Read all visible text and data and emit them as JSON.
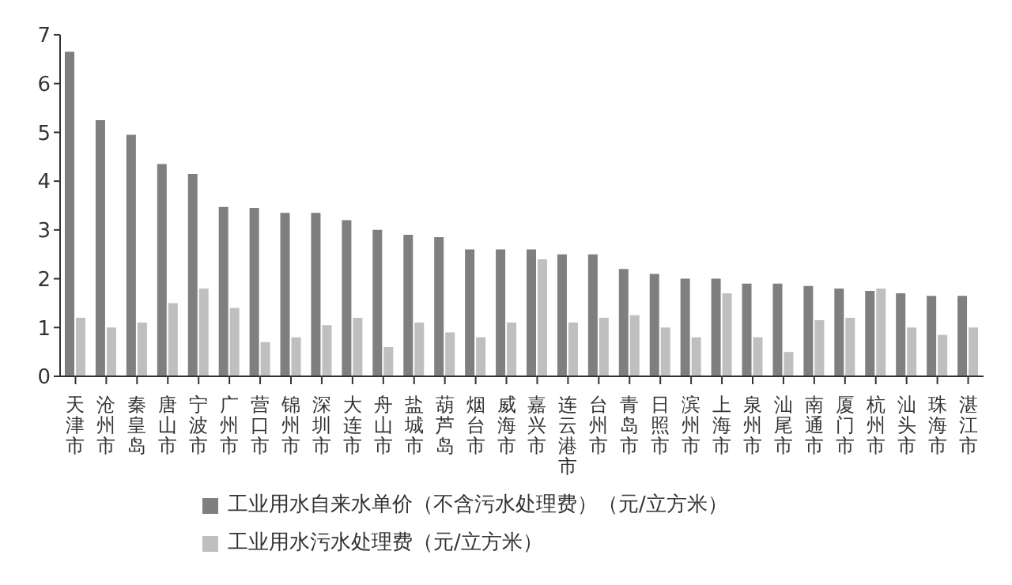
{
  "chart_data": {
    "type": "bar",
    "categories": [
      "天津市",
      "沧州市",
      "秦皇岛",
      "唐山市",
      "宁波市",
      "广州市",
      "营口市",
      "锦州市",
      "深圳市",
      "大连市",
      "舟山市",
      "盐城市",
      "葫芦岛",
      "烟台市",
      "威海市",
      "嘉兴市",
      "连云港市",
      "台州市",
      "青岛市",
      "日照市",
      "滨州市",
      "上海市",
      "泉州市",
      "汕尾市",
      "南通市",
      "厦门市",
      "杭州市",
      "汕头市",
      "珠海市",
      "湛江市"
    ],
    "series": [
      {
        "name": "工业用水自来水单价（不含污水处理费）（元/立方米）",
        "color": "#7f7f7f",
        "values": [
          6.65,
          5.25,
          4.95,
          4.35,
          4.15,
          3.47,
          3.45,
          3.35,
          3.35,
          3.2,
          3.0,
          2.9,
          2.85,
          2.6,
          2.6,
          2.6,
          2.5,
          2.5,
          2.2,
          2.1,
          2.0,
          2.0,
          1.9,
          1.9,
          1.85,
          1.8,
          1.75,
          1.7,
          1.65,
          1.65
        ]
      },
      {
        "name": "工业用水污水处理费（元/立方米）",
        "color": "#bfbfbf",
        "values": [
          1.2,
          1.0,
          1.1,
          1.5,
          1.8,
          1.4,
          0.7,
          0.8,
          1.05,
          1.2,
          0.6,
          1.1,
          0.9,
          0.8,
          1.1,
          2.4,
          1.1,
          1.2,
          1.25,
          1.0,
          0.8,
          1.7,
          0.8,
          0.5,
          1.15,
          1.2,
          1.8,
          1.0,
          0.85,
          1.0
        ]
      }
    ],
    "ylim": [
      0,
      7
    ],
    "yticks": [
      0,
      1,
      2,
      3,
      4,
      5,
      6,
      7
    ],
    "grid": false,
    "legend": "bottom left"
  }
}
